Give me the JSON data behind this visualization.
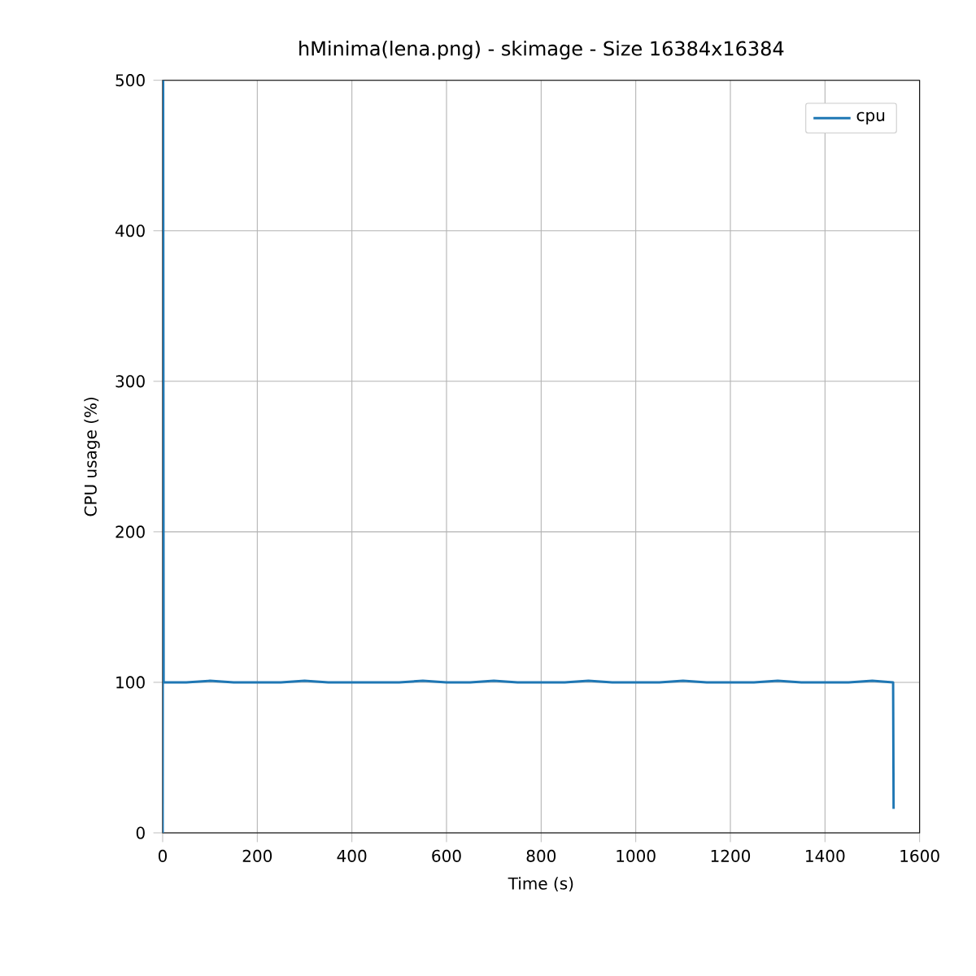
{
  "chart_data": {
    "type": "line",
    "title": "hMinima(lena.png) - skimage - Size 16384x16384",
    "xlabel": "Time (s)",
    "ylabel": "CPU usage (%)",
    "series": [
      {
        "name": "cpu",
        "color": "#1f77b4",
        "x": [
          0,
          1,
          2,
          50,
          100,
          150,
          200,
          250,
          300,
          350,
          400,
          450,
          500,
          550,
          600,
          650,
          700,
          750,
          800,
          850,
          900,
          950,
          1000,
          1050,
          1100,
          1150,
          1200,
          1250,
          1300,
          1350,
          1400,
          1450,
          1500,
          1544,
          1545
        ],
        "values": [
          0,
          500,
          100,
          100,
          101,
          100,
          100,
          100,
          101,
          100,
          100,
          100,
          100,
          101,
          100,
          100,
          101,
          100,
          100,
          100,
          101,
          100,
          100,
          100,
          101,
          100,
          100,
          100,
          101,
          100,
          100,
          100,
          101,
          100,
          16
        ]
      }
    ],
    "xlim": [
      0,
      1600
    ],
    "ylim": [
      0,
      500
    ],
    "xticks": [
      0,
      200,
      400,
      600,
      800,
      1000,
      1200,
      1400,
      1600
    ],
    "yticks": [
      0,
      100,
      200,
      300,
      400,
      500
    ],
    "grid": true,
    "legend": "top right",
    "line_style": "solid",
    "marker": "none"
  }
}
